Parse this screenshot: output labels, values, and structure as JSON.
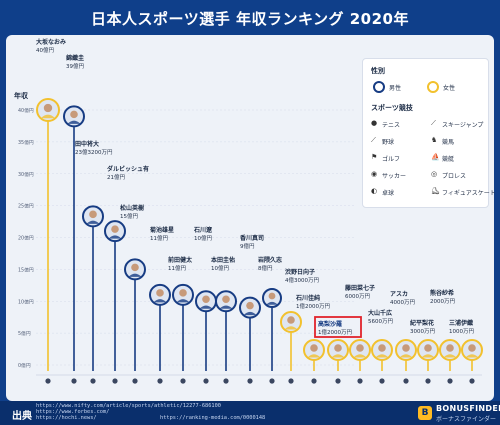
{
  "title": "日本人スポーツ選手 年収ランキング 2020年",
  "colors": {
    "background": "#0f3f8a",
    "male": "#173c83",
    "female": "#f2c12e",
    "highlight": "#e0232c"
  },
  "legend": {
    "gender_title": "性別",
    "male": "男性",
    "female": "女性",
    "sport_title": "スポーツ競技",
    "sports": [
      {
        "label": "テニス",
        "icon": "tennis-icon"
      },
      {
        "label": "スキージャンプ",
        "icon": "ski-jump-icon"
      },
      {
        "label": "野球",
        "icon": "baseball-icon"
      },
      {
        "label": "競馬",
        "icon": "horse-racing-icon"
      },
      {
        "label": "ゴルフ",
        "icon": "golf-icon"
      },
      {
        "label": "競艇",
        "icon": "boat-racing-icon"
      },
      {
        "label": "サッカー",
        "icon": "soccer-icon"
      },
      {
        "label": "プロレス",
        "icon": "pro-wrestling-icon"
      },
      {
        "label": "卓球",
        "icon": "table-tennis-icon"
      },
      {
        "label": "フィギュアスケート",
        "icon": "figure-skating-icon"
      }
    ]
  },
  "footer": {
    "label": "出典",
    "sources": [
      "https://www.nifty.com/article/sports/athletic/12277-686100",
      "https://www.forbes.com/",
      "https://hochi.news/",
      "https://ranking-media.com/0000148"
    ],
    "brand": "BONUSFINDER",
    "brand_sub": "ボーナスファインダー"
  },
  "chart_data": {
    "type": "bar",
    "title": "日本人スポーツ選手 年収ランキング 2020年",
    "ylabel": "年収",
    "ylim": [
      0,
      45
    ],
    "unit": "億円",
    "yticks": [
      0,
      5,
      10,
      15,
      20,
      25,
      30,
      35,
      40
    ],
    "ytick_labels": [
      "0億円",
      "5億円",
      "10億円",
      "15億円",
      "20億円",
      "25億円",
      "30億円",
      "35億円",
      "40億円"
    ],
    "grid": true,
    "legend_position": "top-right",
    "series": [
      {
        "name": "大坂なおみ",
        "label": "40億円",
        "value": 40,
        "gender": "female",
        "sport": "tennis-icon"
      },
      {
        "name": "錦織圭",
        "label": "39億円",
        "value": 39,
        "gender": "male",
        "sport": "tennis-icon"
      },
      {
        "name": "田中将大",
        "label": "23億3200万円",
        "value": 23.32,
        "gender": "male",
        "sport": "baseball-icon"
      },
      {
        "name": "ダルビッシュ有",
        "label": "21億円",
        "value": 21,
        "gender": "male",
        "sport": "baseball-icon"
      },
      {
        "name": "松山英樹",
        "label": "15億円",
        "value": 15,
        "gender": "male",
        "sport": "golf-icon"
      },
      {
        "name": "菊池雄星",
        "label": "11億円",
        "value": 11,
        "gender": "male",
        "sport": "baseball-icon"
      },
      {
        "name": "前田健太",
        "label": "11億円",
        "value": 11,
        "gender": "male",
        "sport": "baseball-icon"
      },
      {
        "name": "石川遼",
        "label": "10億円",
        "value": 10,
        "gender": "male",
        "sport": "golf-icon"
      },
      {
        "name": "本田圭佑",
        "label": "10億円",
        "value": 10,
        "gender": "male",
        "sport": "soccer-icon"
      },
      {
        "name": "香川真司",
        "label": "9億円",
        "value": 9,
        "gender": "male",
        "sport": "soccer-icon"
      },
      {
        "name": "岩隈久志",
        "label": "8億円",
        "value": 8,
        "gender": "male",
        "sport": "baseball-icon"
      },
      {
        "name": "渋野日向子",
        "label": "4億3000万円",
        "value": 4.3,
        "gender": "female",
        "sport": "golf-icon"
      },
      {
        "name": "石川佳純",
        "label": "1億2000万円",
        "value": 1.2,
        "gender": "female",
        "sport": "table-tennis-icon"
      },
      {
        "name": "高梨沙羅",
        "label": "1億2000万円",
        "value": 1.2,
        "gender": "female",
        "sport": "ski-jump-icon",
        "highlight": true
      },
      {
        "name": "藤田菜七子",
        "label": "6000万円",
        "value": 0.6,
        "gender": "female",
        "sport": "horse-racing-icon"
      },
      {
        "name": "大山千広",
        "label": "5600万円",
        "value": 0.56,
        "gender": "female",
        "sport": "boat-racing-icon"
      },
      {
        "name": "アスカ",
        "label": "4000万円",
        "value": 0.4,
        "gender": "female",
        "sport": "pro-wrestling-icon"
      },
      {
        "name": "紀平梨花",
        "label": "3000万円",
        "value": 0.3,
        "gender": "female",
        "sport": "figure-skating-icon"
      },
      {
        "name": "熊谷紗希",
        "label": "2000万円",
        "value": 0.2,
        "gender": "female",
        "sport": "soccer-icon"
      },
      {
        "name": "三浦伊織",
        "label": "1000万円",
        "value": 0.1,
        "gender": "female",
        "sport": "softball-icon"
      }
    ]
  }
}
